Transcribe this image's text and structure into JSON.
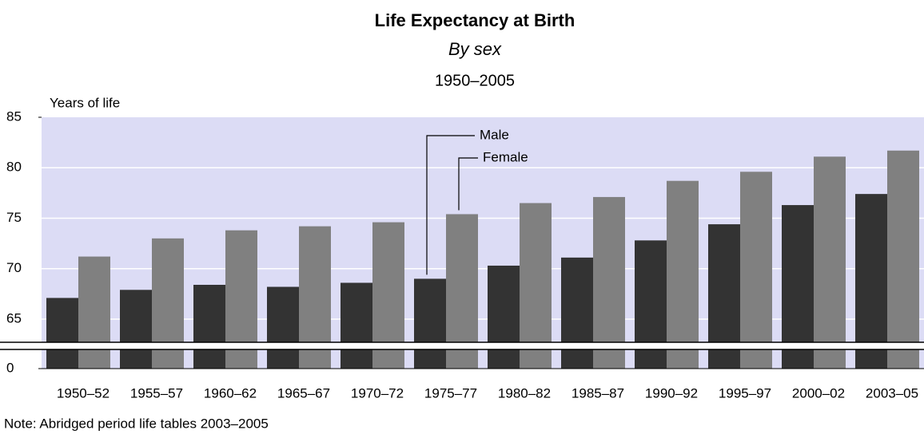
{
  "chart_data": {
    "type": "bar",
    "title": "Life Expectancy at Birth",
    "subtitle": "By sex",
    "period": "1950–2005",
    "y_label": "Years of life",
    "note": "Note: Abridged period life tables 2003–2005",
    "categories": [
      "1950–52",
      "1955–57",
      "1960–62",
      "1965–67",
      "1970–72",
      "1975–77",
      "1980–82",
      "1985–87",
      "1990–92",
      "1995–97",
      "2000–02",
      "2003–05"
    ],
    "series": [
      {
        "name": "Male",
        "color": "#333333",
        "values": [
          67.1,
          67.9,
          68.4,
          68.2,
          68.6,
          69.0,
          70.3,
          71.1,
          72.8,
          74.4,
          76.3,
          77.4
        ]
      },
      {
        "name": "Female",
        "color": "#808080",
        "values": [
          71.2,
          73.0,
          73.8,
          74.2,
          74.6,
          75.4,
          76.5,
          77.1,
          78.7,
          79.6,
          81.1,
          81.7
        ]
      }
    ],
    "ylim": [
      0,
      85
    ],
    "yticks": [
      0,
      65,
      70,
      75,
      80,
      85
    ],
    "axis_break": true,
    "grid": true,
    "plot_background": "#dcdcf5"
  }
}
